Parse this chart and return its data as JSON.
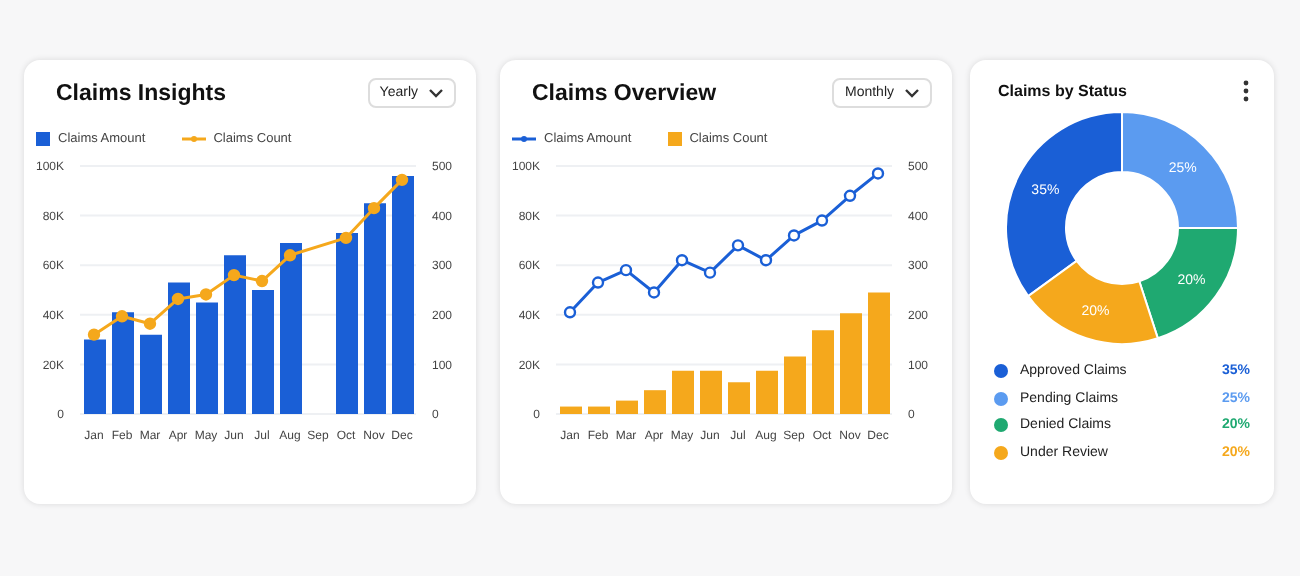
{
  "chart_data": [
    {
      "type": "bar",
      "title": "Claims Insights",
      "annotations": [
        "Yearly"
      ],
      "categories": [
        "Jan",
        "Feb",
        "Mar",
        "Apr",
        "May",
        "Jun",
        "Jul",
        "Aug",
        "Sep",
        "Oct",
        "Nov",
        "Dec"
      ],
      "series": [
        {
          "name": "Claims Amount",
          "type": "bar",
          "color": "#1a5fd6",
          "values": [
            30000,
            41000,
            32000,
            53000,
            45000,
            64000,
            50000,
            69000,
            null,
            73000,
            85000,
            96000
          ]
        },
        {
          "name": "Claims Count",
          "type": "line",
          "axis": "y2",
          "color": "#f5a81c",
          "values": [
            160,
            197,
            182,
            232,
            241,
            280,
            268,
            320,
            null,
            355,
            415,
            472
          ]
        }
      ],
      "ylim": [
        0,
        100000
      ],
      "yticks": [
        0,
        {
          "value": 20000,
          "label": "20K"
        },
        {
          "value": 40000,
          "label": "40K"
        },
        {
          "value": 60000,
          "label": "60K"
        },
        {
          "value": 80000,
          "label": "80K"
        },
        {
          "value": 100000,
          "label": "100K"
        }
      ],
      "y2lim": [
        0,
        500
      ],
      "y2ticks": [
        0,
        100,
        200,
        300,
        400,
        500
      ],
      "grid": "y",
      "legend": "top left",
      "marker": "circle"
    },
    {
      "type": "line",
      "title": "Claims Overview",
      "annotations": [
        "Monthly"
      ],
      "categories": [
        "Jan",
        "Feb",
        "Mar",
        "Apr",
        "May",
        "Jun",
        "Jul",
        "Aug",
        "Sep",
        "Oct",
        "Nov",
        "Dec"
      ],
      "series": [
        {
          "name": "Claims Amount",
          "type": "line",
          "color": "#1a5fd6",
          "values": [
            41000,
            53000,
            58000,
            49000,
            62000,
            57000,
            68000,
            62000,
            72000,
            78000,
            88000,
            97000
          ]
        },
        {
          "name": "Claims Count",
          "type": "bar",
          "axis": "y2",
          "color": "#f5a81c",
          "values": [
            15,
            15,
            27,
            48,
            87,
            87,
            64,
            87,
            116,
            169,
            203,
            245
          ]
        }
      ],
      "ylim": [
        0,
        100000
      ],
      "yticks": [
        0,
        {
          "value": 20000,
          "label": "20K"
        },
        {
          "value": 40000,
          "label": "40K"
        },
        {
          "value": 60000,
          "label": "60K"
        },
        {
          "value": 80000,
          "label": "80K"
        },
        {
          "value": 100000,
          "label": "100K"
        }
      ],
      "y2lim": [
        0,
        500
      ],
      "y2ticks": [
        0,
        100,
        200,
        300,
        400,
        500
      ],
      "grid": "y",
      "legend": "top left",
      "marker": "circle"
    },
    {
      "type": "donut",
      "title": "Claims by Status",
      "categories": [
        "Approved Claims",
        "Pending Claims",
        "Denied Claims",
        "Under Review"
      ],
      "values": [
        35,
        25,
        20,
        20
      ],
      "colors": [
        "#1a5fd6",
        "#5b9bf0",
        "#1fa971",
        "#f5a81c"
      ],
      "value_labels": [
        "35%",
        "25%",
        "20%",
        "20%"
      ],
      "legend": "bottom"
    }
  ]
}
